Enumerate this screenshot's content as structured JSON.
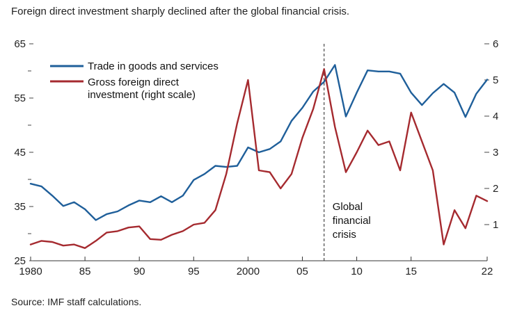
{
  "title": "Foreign direct investment sharply declined after the global financial crisis.",
  "source": "Source: IMF staff calculations.",
  "chart_data": {
    "type": "line",
    "grid": false,
    "legend": "top-left",
    "x_range": [
      1980,
      2022
    ],
    "x_ticks": [
      {
        "value": 1980,
        "label": "1980"
      },
      {
        "value": 1985,
        "label": "85"
      },
      {
        "value": 1990,
        "label": "90"
      },
      {
        "value": 1995,
        "label": "95"
      },
      {
        "value": 2000,
        "label": "2000"
      },
      {
        "value": 2005,
        "label": "05"
      },
      {
        "value": 2010,
        "label": "10"
      },
      {
        "value": 2015,
        "label": "15"
      },
      {
        "value": 2022,
        "label": "22"
      }
    ],
    "y_left": {
      "range": [
        25,
        65
      ],
      "labeled_ticks": [
        25,
        35,
        45,
        55,
        65
      ],
      "minor_ticks": [
        30,
        40,
        50,
        60
      ]
    },
    "y_right": {
      "range": [
        0,
        6
      ],
      "ticks": [
        1,
        2,
        3,
        4,
        5,
        6
      ]
    },
    "annotation": {
      "x": 2007,
      "lines": [
        "Global",
        "financial",
        "crisis"
      ]
    },
    "series": [
      {
        "name": "Trade in goods and services",
        "axis": "left",
        "color": "#1f5f9a",
        "x": [
          1980,
          1981,
          1982,
          1983,
          1984,
          1985,
          1986,
          1987,
          1988,
          1989,
          1990,
          1991,
          1992,
          1993,
          1994,
          1995,
          1996,
          1997,
          1998,
          1999,
          2000,
          2001,
          2002,
          2003,
          2004,
          2005,
          2006,
          2007,
          2008,
          2009,
          2010,
          2011,
          2012,
          2013,
          2014,
          2015,
          2016,
          2017,
          2018,
          2019,
          2020,
          2021,
          2022
        ],
        "values": [
          39.2,
          38.7,
          37.0,
          35.1,
          35.8,
          34.5,
          32.5,
          33.6,
          34.1,
          35.2,
          36.1,
          35.8,
          36.9,
          35.8,
          37.0,
          39.9,
          41.0,
          42.5,
          42.3,
          42.5,
          45.9,
          45.0,
          45.6,
          47.0,
          50.8,
          53.2,
          56.2,
          58.0,
          61.1,
          51.6,
          56.0,
          60.1,
          59.9,
          59.9,
          59.5,
          56.0,
          53.7,
          55.9,
          57.6,
          56.0,
          51.5,
          55.8,
          58.4
        ]
      },
      {
        "name": "Gross foreign direct investment (right scale)",
        "axis": "right",
        "color": "#a52a2f",
        "x": [
          1980,
          1981,
          1982,
          1983,
          1984,
          1985,
          1986,
          1987,
          1988,
          1989,
          1990,
          1991,
          1992,
          1993,
          1994,
          1995,
          1996,
          1997,
          1998,
          1999,
          2000,
          2001,
          2002,
          2003,
          2004,
          2005,
          2006,
          2007,
          2008,
          2009,
          2010,
          2011,
          2012,
          2013,
          2014,
          2015,
          2016,
          2017,
          2018,
          2019,
          2020,
          2021,
          2022
        ],
        "values": [
          0.45,
          0.55,
          0.52,
          0.42,
          0.45,
          0.35,
          0.55,
          0.78,
          0.82,
          0.92,
          0.95,
          0.6,
          0.58,
          0.72,
          0.82,
          1.0,
          1.05,
          1.4,
          2.4,
          3.8,
          5.0,
          2.5,
          2.45,
          2.0,
          2.4,
          3.4,
          4.2,
          5.3,
          3.7,
          2.45,
          3.0,
          3.6,
          3.2,
          3.3,
          2.5,
          4.1,
          3.3,
          2.5,
          0.45,
          1.4,
          0.9,
          1.8,
          1.65
        ]
      }
    ]
  }
}
